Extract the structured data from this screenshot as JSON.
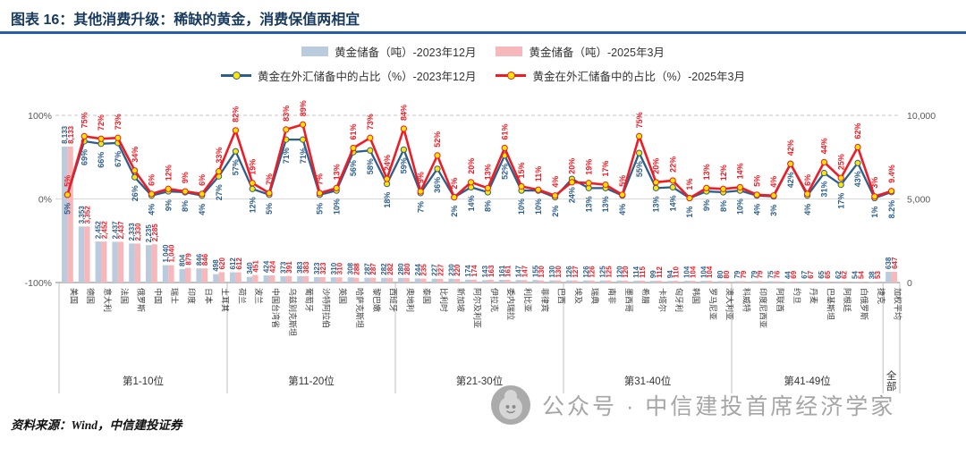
{
  "header": {
    "title": "图表 16：其他消费升级：稀缺的黄金，消费保值两相宜"
  },
  "legend": {
    "items": [
      {
        "label": "黄金储备（吨）-2023年12月",
        "kind": "bar",
        "color": "#b9cbdd"
      },
      {
        "label": "黄金储备（吨）-2025年3月",
        "kind": "bar",
        "color": "#f7b8bc"
      },
      {
        "label": "黄金在外汇储备中的占比（%）-2023年12月",
        "kind": "line",
        "color": "#2e5f8b"
      },
      {
        "label": "黄金在外汇储备中的占比（%）-2025年3月",
        "kind": "line",
        "color": "#ee1c25"
      }
    ]
  },
  "footer": {
    "source": "资料来源：Wind，中信建投证券"
  },
  "watermark": {
    "text": "公众号 · 中信建投首席经济学家"
  },
  "chart_data": {
    "type": "bar+line",
    "title": "图表 16：其他消费升级：稀缺的黄金，消费保值两相宜",
    "left_axis": {
      "ticks": [
        "100%",
        "0%",
        "-100%"
      ],
      "range": [
        -100,
        100
      ]
    },
    "right_axis": {
      "ticks": [
        "10,000",
        "5,000",
        "0"
      ],
      "range": [
        0,
        10000
      ]
    },
    "grid": "dashed top, solid mid, solid bottom axis",
    "legend_position": "top-center",
    "groups": [
      {
        "label": "第1-10位",
        "count": 10
      },
      {
        "label": "第11-20位",
        "count": 10
      },
      {
        "label": "第21-30位",
        "count": 10
      },
      {
        "label": "第31-40位",
        "count": 10
      },
      {
        "label": "第41-49位",
        "count": 9
      },
      {
        "label": "全部",
        "count": 1
      }
    ],
    "categories": [
      "美国",
      "德国",
      "意大利",
      "法国",
      "俄罗斯",
      "中国",
      "瑞士",
      "印度",
      "日本",
      "土耳其",
      "荷兰",
      "波兰",
      "中国台湾省",
      "乌兹别克斯坦",
      "葡萄牙",
      "沙特阿拉伯",
      "英国",
      "哈萨克斯坦",
      "黎巴嫩",
      "西班牙",
      "奥地利",
      "泰国",
      "比利时",
      "新加坡",
      "阿尔及利亚",
      "伊拉克",
      "委内瑞拉",
      "利比亚",
      "菲律宾",
      "巴西",
      "埃及",
      "瑞典",
      "南非",
      "墨西哥",
      "希腊",
      "卡塔尔",
      "匈牙利",
      "韩国",
      "罗马尼亚",
      "澳大利亚",
      "科威特",
      "印度尼西亚",
      "阿联酋",
      "约旦",
      "丹麦",
      "巴基斯坦",
      "阿根廷",
      "白俄罗斯",
      "捷克",
      "加权平均"
    ],
    "series": [
      {
        "name": "黄金储备（吨）-2023年12月",
        "type": "bar",
        "axis": "right",
        "color": "#b9cbdd",
        "values": [
          8133,
          3353,
          2452,
          2437,
          2333,
          2235,
          1040,
          804,
          846,
          498,
          612,
          340,
          424,
          373,
          383,
          323,
          310,
          308,
          287,
          282,
          280,
          244,
          227,
          230,
          174,
          143,
          161,
          147,
          155,
          130,
          126,
          126,
          125,
          120,
          114,
          99,
          94,
          104,
          104,
          80,
          79,
          79,
          75,
          44,
          67,
          65,
          62,
          54,
          38,
          638
        ]
      },
      {
        "name": "黄金储备（吨）-2025年3月",
        "type": "bar",
        "axis": "right",
        "color": "#f7b8bc",
        "values": [
          8133,
          3352,
          2452,
          2437,
          2330,
          2285,
          1040,
          879,
          846,
          620,
          612,
          451,
          424,
          391,
          383,
          323,
          310,
          288,
          287,
          282,
          280,
          235,
          227,
          220,
          174,
          163,
          161,
          147,
          130,
          130,
          127,
          126,
          125,
          120,
          115,
          112,
          110,
          104,
          104,
          80,
          79,
          79,
          76,
          69,
          67,
          65,
          62,
          54,
          53,
          647
        ]
      },
      {
        "name": "黄金在外汇储备中的占比（%）-2023年12月",
        "type": "line",
        "axis": "left",
        "color": "#2e5f8b",
        "values": [
          5,
          69,
          66,
          67,
          26,
          4,
          9,
          8,
          4,
          27,
          57,
          12,
          5,
          71,
          71,
          5,
          10,
          56,
          58,
          18,
          59,
          7,
          36,
          2,
          14,
          8,
          52,
          10,
          10,
          2,
          24,
          13,
          13,
          4,
          55,
          13,
          14,
          1,
          9,
          8,
          10,
          4,
          3,
          42,
          4,
          31,
          17,
          43,
          1,
          8.2
        ]
      },
      {
        "name": "黄金在外汇储备中的占比（%）-2025年3月",
        "type": "line",
        "axis": "left",
        "color": "#ee1c25",
        "values": [
          5,
          75,
          72,
          73,
          34,
          6,
          12,
          9,
          6,
          33,
          82,
          19,
          7,
          83,
          89,
          7,
          13,
          61,
          73,
          24,
          84,
          9,
          52,
          2,
          20,
          13,
          61,
          15,
          11,
          4,
          20,
          19,
          17,
          5,
          75,
          20,
          22,
          1,
          13,
          12,
          14,
          5,
          4,
          42,
          6,
          44,
          25,
          62,
          3,
          9.4
        ]
      }
    ],
    "style": {
      "marker": "#ffe600",
      "grid_color": "#c6c6c6",
      "axis_color": "#808080",
      "tick_color": "#595959",
      "xlabel_color": "#404040"
    }
  }
}
